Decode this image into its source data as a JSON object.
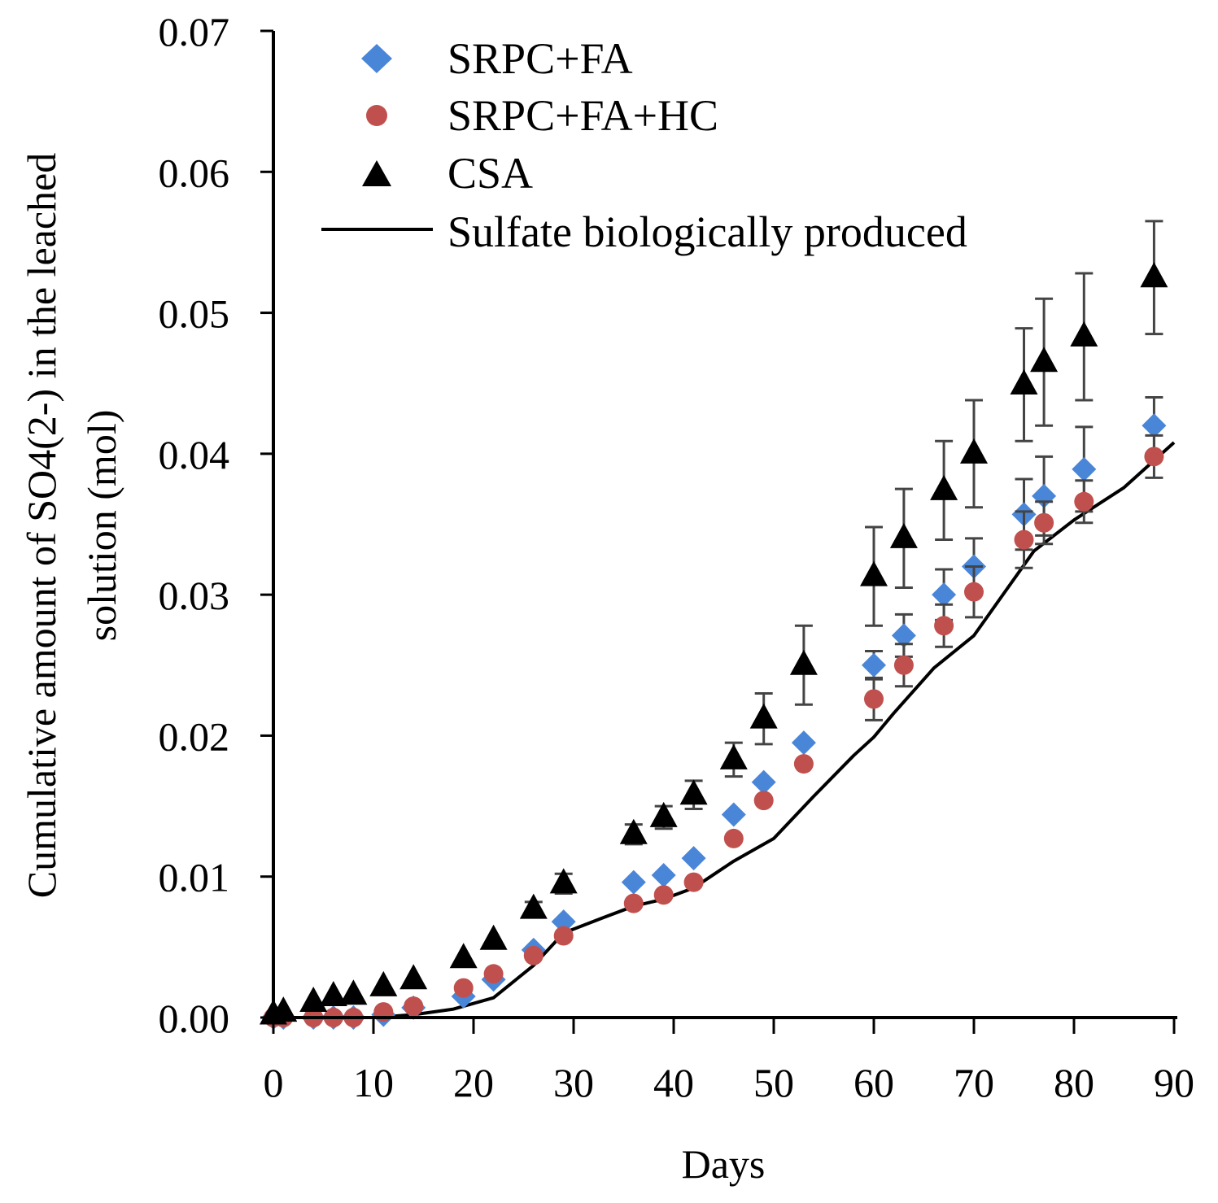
{
  "chart_data": {
    "type": "scatter",
    "xlabel": "Days",
    "ylabel_lines": [
      "Cumulative  amount of SO4(2-) in the leached",
      "solution (mol)"
    ],
    "xlim": [
      0,
      90
    ],
    "ylim": [
      0,
      0.07
    ],
    "x_ticks": [
      "0",
      "10",
      "20",
      "30",
      "40",
      "50",
      "60",
      "70",
      "80",
      "90"
    ],
    "y_ticks": [
      "0.00",
      "0.01",
      "0.02",
      "0.03",
      "0.04",
      "0.05",
      "0.06",
      "0.07"
    ],
    "grid": false,
    "legend_position": "top-left",
    "series": [
      {
        "name": "SRPC+FA",
        "marker": "diamond",
        "color": "#4a86d8",
        "x": [
          0,
          1,
          4,
          6,
          8,
          11,
          14,
          19,
          22,
          26,
          29,
          36,
          39,
          42,
          46,
          49,
          53,
          60,
          63,
          67,
          70,
          75,
          77,
          81,
          88
        ],
        "y": [
          0.0,
          0.0,
          0.0,
          0.0,
          0.0,
          0.0002,
          0.0007,
          0.0015,
          0.0027,
          0.0048,
          0.0068,
          0.0096,
          0.0101,
          0.0113,
          0.0144,
          0.0167,
          0.0195,
          0.025,
          0.0271,
          0.03,
          0.032,
          0.0357,
          0.037,
          0.0389,
          0.042
        ],
        "err": [
          0,
          0,
          0,
          0,
          0,
          0,
          0,
          0,
          0,
          0,
          0,
          0,
          0,
          0,
          0,
          0,
          0,
          0.001,
          0.0015,
          0.0018,
          0.002,
          0.0025,
          0.0028,
          0.003,
          0.002
        ]
      },
      {
        "name": "SRPC+FA+HC",
        "marker": "circle",
        "color": "#c0504d",
        "x": [
          0,
          1,
          4,
          6,
          8,
          11,
          14,
          19,
          22,
          26,
          29,
          36,
          39,
          42,
          46,
          49,
          53,
          60,
          63,
          67,
          70,
          75,
          77,
          81,
          88
        ],
        "y": [
          0.0,
          0.0,
          0.0,
          0.0,
          0.0,
          0.0004,
          0.0008,
          0.0021,
          0.0031,
          0.0044,
          0.0058,
          0.0081,
          0.0087,
          0.0096,
          0.0127,
          0.0154,
          0.018,
          0.0226,
          0.025,
          0.0278,
          0.0302,
          0.0339,
          0.0351,
          0.0366,
          0.0398
        ],
        "err": [
          0,
          0,
          0,
          0,
          0,
          0,
          0,
          0,
          0,
          0,
          0,
          0,
          0,
          0,
          0,
          0,
          0,
          0.0015,
          0.0015,
          0.0015,
          0.0018,
          0.002,
          0.0015,
          0.0015,
          0.0015
        ]
      },
      {
        "name": "CSA",
        "marker": "triangle",
        "color": "#000000",
        "x": [
          0,
          1,
          4,
          6,
          8,
          11,
          14,
          19,
          22,
          26,
          29,
          36,
          39,
          42,
          46,
          49,
          53,
          60,
          63,
          67,
          70,
          75,
          77,
          81,
          88
        ],
        "y": [
          0.0002,
          0.0004,
          0.0011,
          0.0015,
          0.0016,
          0.0022,
          0.0027,
          0.0042,
          0.0055,
          0.0077,
          0.0095,
          0.013,
          0.0142,
          0.0158,
          0.0183,
          0.0212,
          0.025,
          0.0313,
          0.034,
          0.0374,
          0.04,
          0.0449,
          0.0465,
          0.0483,
          0.0525
        ],
        "err": [
          0,
          0,
          0,
          0,
          0,
          0,
          0,
          0,
          0,
          0.0005,
          0.0007,
          0.0007,
          0.0008,
          0.001,
          0.0012,
          0.0018,
          0.0028,
          0.0035,
          0.0035,
          0.0035,
          0.0038,
          0.004,
          0.0045,
          0.0045,
          0.004
        ]
      },
      {
        "name": "Sulfate biologically produced",
        "marker": "line",
        "color": "#000000",
        "x": [
          0,
          5,
          10,
          14,
          18,
          22,
          26,
          29,
          33,
          36,
          39,
          42,
          46,
          50,
          54,
          58,
          60,
          62,
          66,
          70,
          73,
          76,
          80,
          85,
          90
        ],
        "y": [
          0.0,
          0.0,
          0.0,
          0.0002,
          0.0006,
          0.0014,
          0.0037,
          0.006,
          0.0071,
          0.0079,
          0.0084,
          0.0092,
          0.0111,
          0.0127,
          0.0157,
          0.0186,
          0.0199,
          0.0216,
          0.0248,
          0.0271,
          0.0301,
          0.0331,
          0.0353,
          0.0376,
          0.0408
        ]
      }
    ]
  }
}
